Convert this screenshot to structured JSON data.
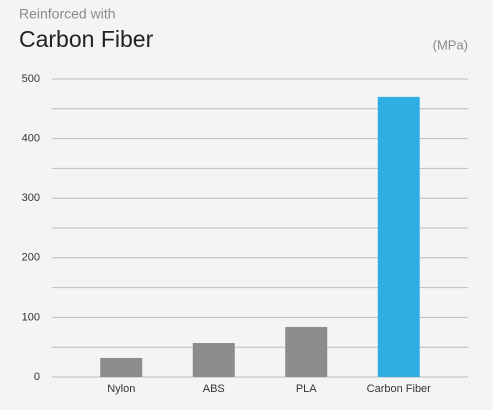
{
  "chart_data": {
    "type": "bar",
    "subtitle": "Reinforced with",
    "title": "Carbon Fiber",
    "unit_label": "(MPa)",
    "categories": [
      "Nylon",
      "ABS",
      "PLA",
      "Carbon Fiber"
    ],
    "values": [
      32,
      57,
      84,
      470
    ],
    "colors": [
      "#8c8c8c",
      "#8c8c8c",
      "#8c8c8c",
      "#2eaee2"
    ],
    "ylim": [
      0,
      500
    ],
    "yticks": [
      0,
      100,
      200,
      300,
      400,
      500
    ],
    "minor_yticks": [
      50,
      150,
      250,
      350,
      450
    ],
    "grid": true
  }
}
